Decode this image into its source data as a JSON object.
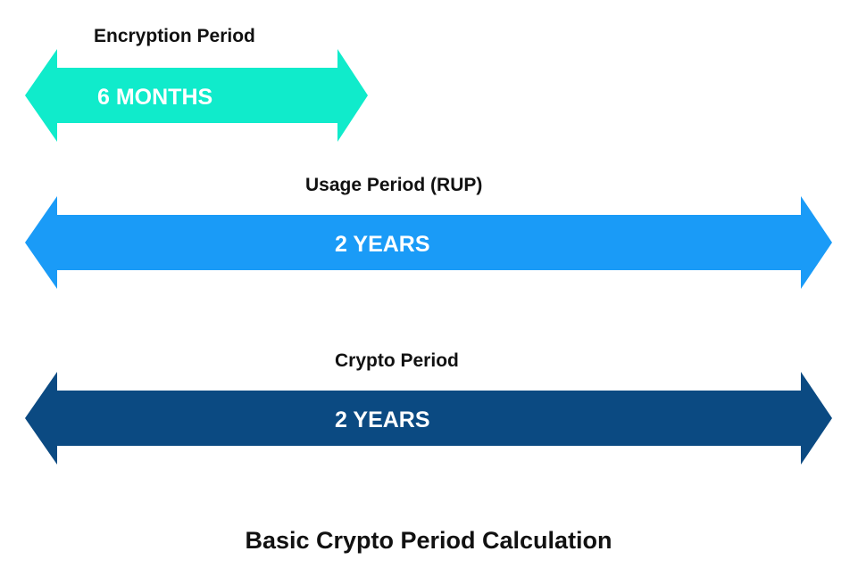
{
  "diagram": {
    "title": "Basic Crypto Period Calculation",
    "arrows": [
      {
        "label": "Encryption Period",
        "value": "6 MONTHS",
        "color": "#10EBCB"
      },
      {
        "label": "Usage Period (RUP)",
        "value": "2 YEARS",
        "color": "#1A9BF7"
      },
      {
        "label": "Crypto Period",
        "value": "2 YEARS",
        "color": "#0B4A82"
      }
    ]
  }
}
